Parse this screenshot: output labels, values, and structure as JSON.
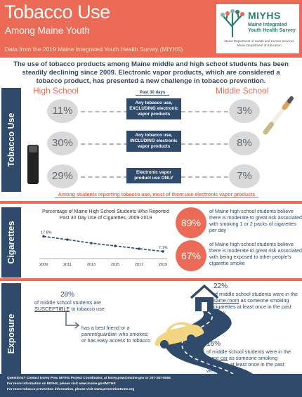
{
  "header": {
    "title": "Tobacco Use",
    "subtitle": "Among Maine Youth",
    "survey": "Data from the 2019 Maine Integrated Youth Health Survey (MIYHS)",
    "logo_name": "MIYHS",
    "logo_sub": "Maine Integrated Youth Health Survey",
    "logo_dept": "Maine Department of Health and Human Services Maine Department of Education"
  },
  "intro": "The use of tobacco products among Maine middle and high school students has been steadily declining since 2009. Electronic vapor products, which are considered a tobacco product, has presented a new challenge in tobacco prevention.",
  "tobacco_use": {
    "section_label": "Tobacco Use",
    "hs_label": "High School",
    "ms_label": "Middle School",
    "past30": "Past 30 days",
    "rows": [
      {
        "hs": "11%",
        "product": "Any tobacco use, EXCLUDING electronic vapor products",
        "ms": "3%"
      },
      {
        "hs": "30%",
        "product": "Any tobacco use, INCLUDING electronic vapor products",
        "ms": "8%"
      },
      {
        "hs": "29%",
        "product": "Electronic vapor product use ONLY",
        "ms": "7%"
      }
    ],
    "note": "Among students reporting tobacco use, most of them use electronic vapor products"
  },
  "cigarettes": {
    "section_label": "Cigarettes",
    "stats": [
      {
        "pct": "89%",
        "text": "of Maine high school students believe there is moderate to great risk associated with smoking 1 or 2 packs of cigarettes per day"
      },
      {
        "pct": "67%",
        "text": "of Maine high school students believe there is moderate to great risk associated with being exposed to other people's cigarette smoke"
      }
    ]
  },
  "chart_data": {
    "type": "line",
    "title": "Percentage of Maine High School Students Who Reported Past 30 Day Use of Cigarettes, 2009-2019",
    "x": [
      "2009",
      "2011",
      "2013",
      "2015",
      "2017",
      "2019"
    ],
    "values": [
      17.8,
      15.5,
      13.0,
      11.0,
      9.0,
      7.1
    ],
    "first_label": "17.8%",
    "last_label": "7.1%",
    "ylim": [
      0,
      20
    ],
    "grid": false
  },
  "exposure": {
    "section_label": "Exposure",
    "susceptible": {
      "pct": "28%",
      "line1": "of middle school students are",
      "keyword": "SUSCEPTIBLE",
      "line2": "to tobacco use"
    },
    "criteria": "has a best friend or a parent/guardian who smokes; or has easy access to tobacco",
    "room": {
      "pct": "22%",
      "line1": "of middle school students were in the",
      "keyword": "same room",
      "line2": "as someone smoking cigarettes at least once in the past week"
    },
    "car": {
      "pct": "16%",
      "line1": "of middle school students were in the",
      "keyword": "same car",
      "line2": "as someone smoking cigarettes at least once in the past week"
    }
  },
  "footer": {
    "line1": "Questions? Contact Korey Pow, MIYHS Project Coordinator, at korey.pow@maine.gov or 207-287-8084",
    "line2": "For more information on MIYHS, please visit www.maine.gov/MIYHS",
    "line3": "For more tobacco prevention information, please visit www.preventiontome.org"
  },
  "colors": {
    "accent": "#ec6b56",
    "navy": "#2f4a6b",
    "gray": "#d9d9d9"
  },
  "icons": [
    "tree-logo-icon",
    "vape-pen-icon",
    "cigarette-icon",
    "house-icon",
    "car-icon",
    "road-icon"
  ]
}
